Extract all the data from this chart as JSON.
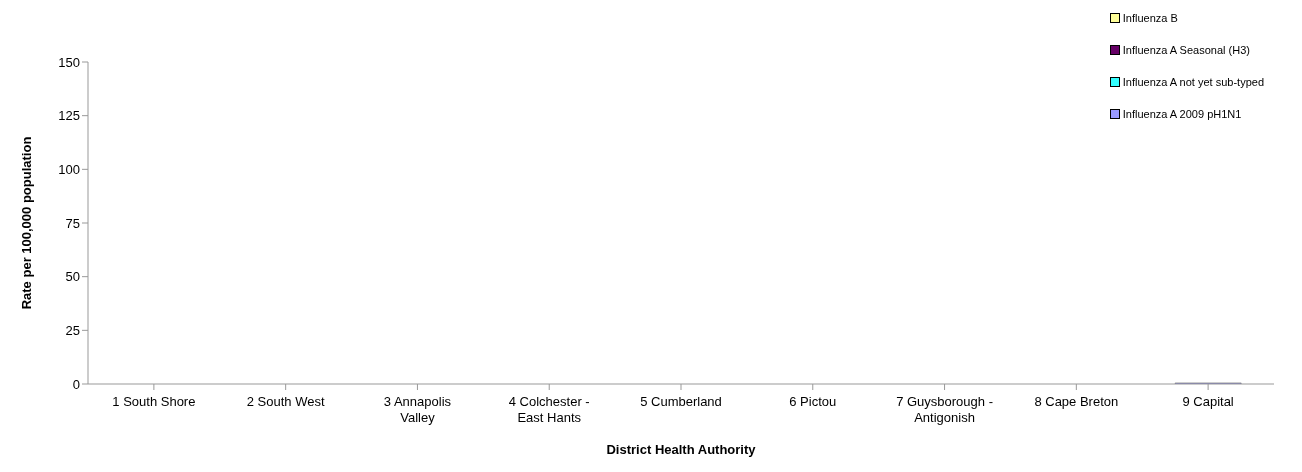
{
  "chart_data": {
    "type": "bar",
    "stacked": true,
    "xlabel": "District Health Authority",
    "ylabel": "Rate per 100,000 population",
    "categories": [
      "1 South Shore",
      "2 South West",
      "3 Annapolis Valley",
      "4 Colchester - East Hants",
      "5 Cumberland",
      "6 Pictou",
      "7 Guysborough - Antigonish",
      "8 Cape Breton",
      "9 Capital"
    ],
    "series": [
      {
        "name": "Influenza A 2009 pH1N1",
        "color": "#9999ff",
        "values": [
          0,
          0,
          0,
          0,
          0,
          0,
          0,
          0,
          0.5
        ]
      },
      {
        "name": "Influenza A not yet sub-typed",
        "color": "#33ffff",
        "values": [
          0,
          0,
          0,
          0,
          0,
          0,
          0,
          0,
          0
        ]
      },
      {
        "name": "Influenza A Seasonal (H3)",
        "color": "#660066",
        "values": [
          0,
          0,
          0,
          0,
          0,
          0,
          0,
          0,
          0
        ]
      },
      {
        "name": "Influenza B",
        "color": "#ffff99",
        "values": [
          0,
          0,
          0,
          0,
          0,
          0,
          0,
          0,
          0
        ]
      }
    ],
    "ylim": [
      0,
      150
    ],
    "yticks": [
      0,
      25,
      50,
      75,
      100,
      125,
      150
    ],
    "grid": false,
    "legend": "top right"
  }
}
